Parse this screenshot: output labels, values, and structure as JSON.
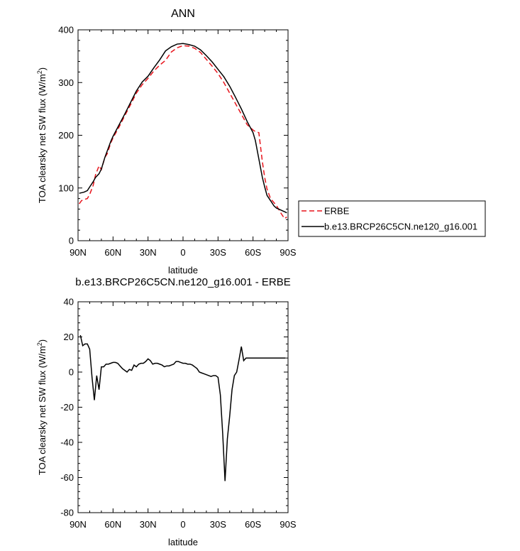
{
  "chart_data": [
    {
      "type": "line",
      "title": "ANN",
      "xlabel": "latitude",
      "ylabel_prefix": "TOA clearsky net SW flux (W/m",
      "ylabel_sup": "2",
      "ylabel_suffix": ")",
      "xlim": [
        90,
        -90
      ],
      "ylim": [
        0,
        400
      ],
      "xticks": [
        90,
        60,
        30,
        0,
        -30,
        -60,
        -90
      ],
      "xticklabels": [
        "90N",
        "60N",
        "30N",
        "0",
        "30S",
        "60S",
        "90S"
      ],
      "yticks": [
        0,
        100,
        200,
        300,
        400
      ],
      "yticklabels": [
        "0",
        "100",
        "200",
        "300",
        "400"
      ],
      "legend_position": "right",
      "series": [
        {
          "name": "ERBE",
          "color": "#e8141c",
          "dash": true,
          "x": [
            89,
            87,
            85,
            82,
            80,
            77,
            75,
            72,
            70,
            67,
            65,
            62,
            60,
            55,
            50,
            45,
            40,
            35,
            30,
            25,
            20,
            15,
            10,
            5,
            0,
            -5,
            -10,
            -15,
            -20,
            -25,
            -30,
            -35,
            -40,
            -45,
            -50,
            -55,
            -60,
            -62,
            -65,
            -68,
            -70,
            -72,
            -75,
            -78,
            -80,
            -84,
            -87,
            -89
          ],
          "y": [
            70,
            76,
            78,
            80,
            88,
            105,
            125,
            142,
            135,
            158,
            165,
            185,
            195,
            215,
            237,
            258,
            280,
            296,
            308,
            322,
            333,
            342,
            358,
            366,
            370,
            369,
            365,
            357,
            344,
            331,
            317,
            300,
            280,
            260,
            240,
            220,
            210,
            207,
            205,
            150,
            120,
            98,
            80,
            72,
            67,
            52,
            42,
            45
          ]
        },
        {
          "name": "b.e13.BRCP26C5CN.ne120_g16.001",
          "color": "#000000",
          "dash": false,
          "x": [
            89,
            87,
            85,
            82,
            80,
            77,
            75,
            72,
            70,
            67,
            65,
            62,
            60,
            55,
            50,
            45,
            40,
            35,
            30,
            25,
            20,
            15,
            10,
            5,
            0,
            -5,
            -10,
            -15,
            -20,
            -25,
            -30,
            -35,
            -40,
            -45,
            -50,
            -55,
            -60,
            -62,
            -65,
            -68,
            -70,
            -72,
            -75,
            -78,
            -80,
            -84,
            -87,
            -89
          ],
          "y": [
            90,
            91,
            92,
            95,
            102,
            112,
            120,
            127,
            136,
            158,
            170,
            188,
            198,
            219,
            240,
            262,
            284,
            301,
            312,
            328,
            343,
            360,
            368,
            373,
            374,
            372,
            369,
            362,
            351,
            339,
            325,
            311,
            293,
            272,
            250,
            226,
            205,
            190,
            155,
            120,
            102,
            86,
            76,
            66,
            62,
            58,
            55,
            53
          ]
        }
      ]
    },
    {
      "type": "line",
      "title": "b.e13.BRCP26C5CN.ne120_g16.001 - ERBE",
      "xlabel": "latitude",
      "ylabel_prefix": "TOA clearsky net SW flux (W/m",
      "ylabel_sup": "2",
      "ylabel_suffix": ")",
      "xlim": [
        90,
        -90
      ],
      "ylim": [
        -80,
        40
      ],
      "xticks": [
        90,
        60,
        30,
        0,
        -30,
        -60,
        -90
      ],
      "xticklabels": [
        "90N",
        "60N",
        "30N",
        "0",
        "30S",
        "60S",
        "90S"
      ],
      "yticks": [
        -80,
        -60,
        -40,
        -20,
        0,
        20,
        40
      ],
      "yticklabels": [
        "-80",
        "-60",
        "-40",
        "-20",
        "0",
        "20",
        "40"
      ],
      "series": [
        {
          "name": "b.e13.BRCP26C5CN.ne120_g16.001 - ERBE",
          "color": "#000000",
          "dash": false,
          "x": [
            88,
            86,
            84,
            82,
            80,
            78,
            76,
            74,
            72,
            70,
            68,
            66,
            64,
            62,
            60,
            58,
            56,
            54,
            52,
            50,
            48,
            46,
            44,
            42,
            40,
            38,
            36,
            34,
            32,
            30,
            28,
            26,
            24,
            22,
            20,
            18,
            16,
            14,
            12,
            10,
            8,
            6,
            4,
            2,
            0,
            -2,
            -4,
            -6,
            -8,
            -10,
            -12,
            -14,
            -16,
            -18,
            -20,
            -22,
            -24,
            -26,
            -28,
            -30,
            -32,
            -34,
            -36,
            -38,
            -40,
            -42,
            -44,
            -46,
            -48,
            -50,
            -52,
            -54,
            -56,
            -58,
            -60,
            -62,
            -64,
            -66,
            -68,
            -70,
            -72,
            -74,
            -76,
            -78,
            -80,
            -82,
            -84,
            -86,
            -88
          ],
          "y": [
            21,
            15,
            16,
            16,
            13,
            -3,
            -16,
            -2,
            -10,
            3,
            3,
            4.5,
            4.5,
            5,
            5.5,
            5.5,
            5,
            3.5,
            2,
            1,
            0,
            1.5,
            1,
            4,
            3,
            4.5,
            5,
            5,
            6,
            7.5,
            6.5,
            4.5,
            5,
            5,
            4.5,
            4,
            3,
            3.5,
            3.5,
            4,
            4.5,
            6,
            6,
            5.5,
            5,
            5,
            4.5,
            4.5,
            4,
            3,
            2,
            0,
            -0.5,
            -1,
            -1.5,
            -2,
            -2.5,
            -2,
            -2,
            -3,
            -13,
            -35,
            -62,
            -38,
            -25,
            -10,
            -2,
            0,
            7,
            14.5,
            6.5,
            8,
            8,
            8,
            8,
            8,
            8,
            8,
            8,
            8,
            8,
            8,
            8,
            8,
            8,
            8,
            8,
            8,
            8
          ]
        }
      ]
    }
  ]
}
